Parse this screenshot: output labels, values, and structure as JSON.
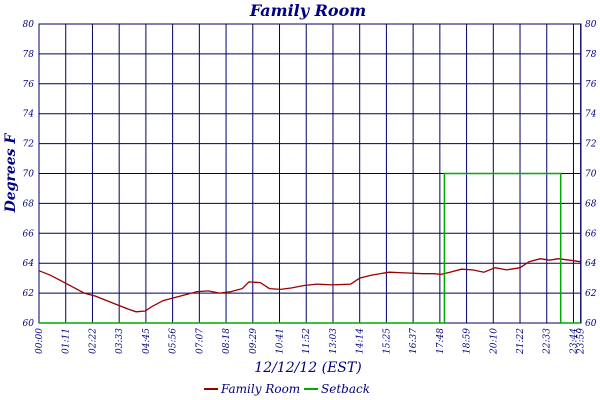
{
  "chart_data": {
    "type": "line",
    "title": "Family Room",
    "ylabel": "Degrees F",
    "xlabel": "12/12/12 (EST)",
    "ylim": [
      60,
      80
    ],
    "yticks": [
      60,
      62,
      64,
      66,
      68,
      70,
      72,
      74,
      76,
      78,
      80
    ],
    "x_tick_labels": [
      "00:00",
      "01:11",
      "02:22",
      "03:33",
      "04:45",
      "05:56",
      "07:07",
      "08:18",
      "09:29",
      "10:41",
      "11:52",
      "13:03",
      "14:14",
      "15:25",
      "16:37",
      "17:48",
      "18:59",
      "20:10",
      "21:22",
      "22:33",
      "23:44",
      "23:59"
    ],
    "grid": true,
    "legend_position": "bottom",
    "colors": {
      "family_room": "#990000",
      "setback": "#00aa00",
      "grid": "#000066",
      "text": "#000080"
    },
    "series": [
      {
        "name": "Family Room",
        "points": [
          [
            0,
            63.5
          ],
          [
            0.5,
            63.2
          ],
          [
            1,
            62.8
          ],
          [
            1.5,
            62.4
          ],
          [
            2,
            62.0
          ],
          [
            2.5,
            61.8
          ],
          [
            3,
            61.5
          ],
          [
            3.5,
            61.2
          ],
          [
            4,
            60.9
          ],
          [
            4.3,
            60.75
          ],
          [
            4.7,
            60.8
          ],
          [
            5.0,
            61.1
          ],
          [
            5.5,
            61.5
          ],
          [
            6,
            61.7
          ],
          [
            6.5,
            61.9
          ],
          [
            7,
            62.1
          ],
          [
            7.5,
            62.15
          ],
          [
            8,
            62.0
          ],
          [
            8.5,
            62.1
          ],
          [
            9,
            62.3
          ],
          [
            9.3,
            62.75
          ],
          [
            9.8,
            62.7
          ],
          [
            10.2,
            62.3
          ],
          [
            10.7,
            62.25
          ],
          [
            11.2,
            62.35
          ],
          [
            11.7,
            62.5
          ],
          [
            12.3,
            62.6
          ],
          [
            13,
            62.55
          ],
          [
            13.8,
            62.6
          ],
          [
            14.2,
            63.0
          ],
          [
            14.7,
            63.2
          ],
          [
            15.5,
            63.4
          ],
          [
            16.2,
            63.35
          ],
          [
            17,
            63.3
          ],
          [
            17.5,
            63.3
          ],
          [
            17.8,
            63.25
          ],
          [
            18.2,
            63.4
          ],
          [
            18.7,
            63.6
          ],
          [
            19.2,
            63.55
          ],
          [
            19.7,
            63.4
          ],
          [
            20.2,
            63.7
          ],
          [
            20.7,
            63.55
          ],
          [
            21.3,
            63.7
          ],
          [
            21.7,
            64.1
          ],
          [
            22.2,
            64.3
          ],
          [
            22.6,
            64.2
          ],
          [
            23.0,
            64.3
          ],
          [
            23.5,
            64.2
          ],
          [
            23.98,
            64.1
          ]
        ]
      },
      {
        "name": "Setback",
        "points": [
          [
            0,
            60
          ],
          [
            17.95,
            60
          ],
          [
            17.95,
            70
          ],
          [
            23.1,
            70
          ],
          [
            23.1,
            60
          ],
          [
            23.98,
            60
          ]
        ]
      }
    ]
  }
}
